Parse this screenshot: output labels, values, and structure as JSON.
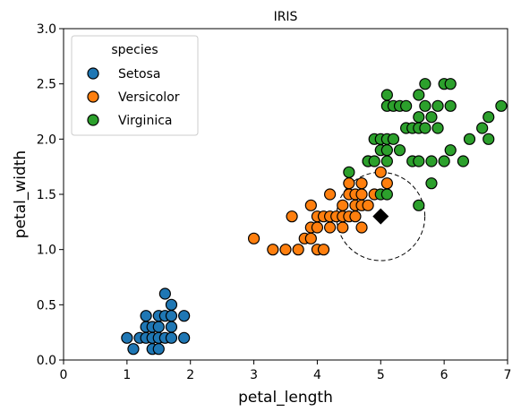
{
  "chart_data": {
    "type": "scatter",
    "title": "IRIS",
    "xlabel": "petal_length",
    "ylabel": "petal_width",
    "xlim": [
      0,
      7
    ],
    "ylim": [
      0,
      3
    ],
    "xticks": [
      "0",
      "1",
      "2",
      "3",
      "4",
      "5",
      "6",
      "7"
    ],
    "yticks": [
      "0.0",
      "0.5",
      "1.0",
      "1.5",
      "2.0",
      "2.5",
      "3.0"
    ],
    "grid": false,
    "legend": {
      "title": "species",
      "placement": "top-left"
    },
    "series": [
      {
        "name": "Setosa",
        "color": "#1f77b4",
        "points": [
          [
            1.0,
            0.2
          ],
          [
            1.1,
            0.1
          ],
          [
            1.2,
            0.2
          ],
          [
            1.3,
            0.2
          ],
          [
            1.3,
            0.3
          ],
          [
            1.3,
            0.4
          ],
          [
            1.4,
            0.1
          ],
          [
            1.4,
            0.2
          ],
          [
            1.4,
            0.3
          ],
          [
            1.5,
            0.1
          ],
          [
            1.5,
            0.2
          ],
          [
            1.5,
            0.3
          ],
          [
            1.5,
            0.4
          ],
          [
            1.6,
            0.2
          ],
          [
            1.6,
            0.4
          ],
          [
            1.6,
            0.6
          ],
          [
            1.7,
            0.2
          ],
          [
            1.7,
            0.3
          ],
          [
            1.7,
            0.4
          ],
          [
            1.7,
            0.5
          ],
          [
            1.9,
            0.2
          ],
          [
            1.9,
            0.4
          ]
        ]
      },
      {
        "name": "Versicolor",
        "color": "#ff7f0e",
        "points": [
          [
            3.0,
            1.1
          ],
          [
            3.3,
            1.0
          ],
          [
            3.5,
            1.0
          ],
          [
            3.6,
            1.3
          ],
          [
            3.7,
            1.0
          ],
          [
            3.8,
            1.1
          ],
          [
            3.9,
            1.1
          ],
          [
            3.9,
            1.2
          ],
          [
            3.9,
            1.4
          ],
          [
            4.0,
            1.0
          ],
          [
            4.0,
            1.2
          ],
          [
            4.0,
            1.3
          ],
          [
            4.1,
            1.0
          ],
          [
            4.1,
            1.3
          ],
          [
            4.2,
            1.2
          ],
          [
            4.2,
            1.3
          ],
          [
            4.2,
            1.5
          ],
          [
            4.3,
            1.3
          ],
          [
            4.4,
            1.2
          ],
          [
            4.4,
            1.3
          ],
          [
            4.4,
            1.4
          ],
          [
            4.5,
            1.3
          ],
          [
            4.5,
            1.5
          ],
          [
            4.5,
            1.6
          ],
          [
            4.6,
            1.3
          ],
          [
            4.6,
            1.4
          ],
          [
            4.6,
            1.5
          ],
          [
            4.7,
            1.2
          ],
          [
            4.7,
            1.4
          ],
          [
            4.7,
            1.5
          ],
          [
            4.7,
            1.6
          ],
          [
            4.8,
            1.4
          ],
          [
            4.8,
            1.8
          ],
          [
            4.9,
            1.5
          ],
          [
            5.0,
            1.7
          ],
          [
            5.1,
            1.6
          ]
        ]
      },
      {
        "name": "Virginica",
        "color": "#2ca02c",
        "points": [
          [
            4.5,
            1.7
          ],
          [
            4.8,
            1.8
          ],
          [
            4.9,
            1.8
          ],
          [
            4.9,
            2.0
          ],
          [
            5.0,
            1.5
          ],
          [
            5.0,
            1.9
          ],
          [
            5.0,
            2.0
          ],
          [
            5.1,
            1.5
          ],
          [
            5.1,
            1.8
          ],
          [
            5.1,
            1.9
          ],
          [
            5.1,
            2.0
          ],
          [
            5.1,
            2.3
          ],
          [
            5.1,
            2.4
          ],
          [
            5.2,
            2.0
          ],
          [
            5.2,
            2.3
          ],
          [
            5.3,
            1.9
          ],
          [
            5.3,
            2.3
          ],
          [
            5.4,
            2.1
          ],
          [
            5.4,
            2.3
          ],
          [
            5.5,
            1.8
          ],
          [
            5.5,
            2.1
          ],
          [
            5.6,
            1.8
          ],
          [
            5.6,
            2.1
          ],
          [
            5.6,
            2.2
          ],
          [
            5.6,
            2.4
          ],
          [
            5.6,
            1.4
          ],
          [
            5.7,
            2.1
          ],
          [
            5.7,
            2.3
          ],
          [
            5.7,
            2.5
          ],
          [
            5.8,
            1.6
          ],
          [
            5.8,
            1.8
          ],
          [
            5.8,
            2.2
          ],
          [
            5.9,
            2.1
          ],
          [
            5.9,
            2.3
          ],
          [
            6.0,
            1.8
          ],
          [
            6.0,
            2.5
          ],
          [
            6.1,
            1.9
          ],
          [
            6.1,
            2.3
          ],
          [
            6.1,
            2.5
          ],
          [
            6.3,
            1.8
          ],
          [
            6.4,
            2.0
          ],
          [
            6.6,
            2.1
          ],
          [
            6.7,
            2.0
          ],
          [
            6.7,
            2.2
          ],
          [
            6.9,
            2.3
          ]
        ]
      }
    ],
    "annotations": [
      {
        "kind": "diamond-marker",
        "x": 5.0,
        "y": 1.3,
        "color": "#000000"
      },
      {
        "kind": "dashed-circle",
        "center": [
          5.0,
          1.3
        ],
        "radius": 0.4,
        "color": "#000000"
      }
    ]
  }
}
